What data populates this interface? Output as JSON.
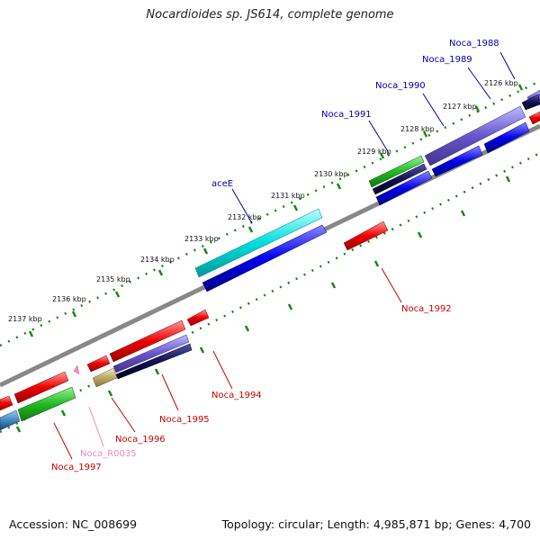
{
  "title": "Nocardioides sp. JS614, complete genome",
  "footer": {
    "accession": "Accession: NC_008699",
    "summary": "Topology: circular; Length: 4,985,871 bp; Genes: 4,700"
  },
  "tick_labels": [
    "2126 kbp",
    "2127 kbp",
    "2128 kbp",
    "2129 kbp",
    "2130 kbp",
    "2131 kbp",
    "2132 kbp",
    "2133 kbp",
    "2134 kbp",
    "2135 kbp",
    "2136 kbp",
    "2137 kbp"
  ],
  "gene_labels": {
    "noca_1988": "Noca_1988",
    "noca_1989": "Noca_1989",
    "noca_1990": "Noca_1990",
    "noca_1991": "Noca_1991",
    "acee": "aceE",
    "noca_1992": "Noca_1992",
    "noca_1994": "Noca_1994",
    "noca_1995": "Noca_1995",
    "noca_1996": "Noca_1996",
    "noca_r0035": "Noca_R0035",
    "noca_1997": "Noca_1997"
  },
  "colors": {
    "cds_forward": "#0000ee",
    "cds_reverse": "#ee0000",
    "gene_forward": "#00dddd",
    "gene_other": "#22bb22",
    "operon": "#6655cc",
    "rna": "#ff88cc",
    "misc": "#bbaa66",
    "backbone": "#888888",
    "ticks": "#118811",
    "label_forward": "#0000aa",
    "label_reverse": "#cc0000",
    "label_rna": "#ee88bb"
  }
}
